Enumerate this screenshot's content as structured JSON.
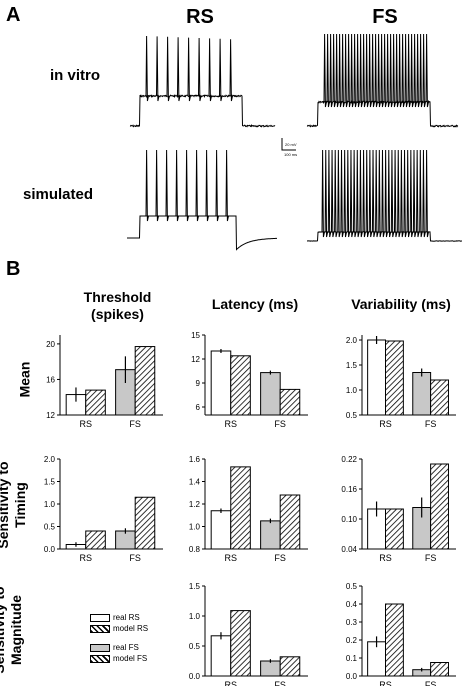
{
  "panel_a": {
    "label": "A",
    "col_rs": "RS",
    "col_fs": "FS",
    "row_invitro": "in vitro",
    "row_simulated": "simulated",
    "scale_v": "20 mV",
    "scale_t": "100 ms"
  },
  "panel_b": {
    "label": "B",
    "col_threshold": "Threshold (spikes)",
    "col_latency": "Latency (ms)",
    "col_variability": "Variability (ms)",
    "row_mean": "Mean",
    "row_timing": "Sensitivity to Timing",
    "row_magnitude": "Sensitivity to Magnitude"
  },
  "legend": {
    "items": [
      "real RS",
      "model RS",
      "real FS",
      "model FS"
    ]
  },
  "colors": {
    "real_rs": "#ffffff",
    "real_fs": "#c8c8c8",
    "hatch": "#000000"
  },
  "chart_data": [
    {
      "type": "bar",
      "id": "mean-threshold",
      "categories": [
        "RS",
        "FS"
      ],
      "ylim": [
        12,
        21
      ],
      "yticks": [
        12,
        16,
        20
      ],
      "real": [
        14.3,
        17.1
      ],
      "real_err": [
        0.8,
        1.5
      ],
      "model": [
        14.8,
        19.7
      ]
    },
    {
      "type": "bar",
      "id": "mean-latency",
      "categories": [
        "RS",
        "FS"
      ],
      "ylim": [
        5,
        15
      ],
      "yticks": [
        6,
        9,
        12,
        15
      ],
      "real": [
        13.0,
        10.3
      ],
      "real_err": [
        0.25,
        0.25
      ],
      "model": [
        12.4,
        8.2
      ]
    },
    {
      "type": "bar",
      "id": "mean-variability",
      "categories": [
        "RS",
        "FS"
      ],
      "ylim": [
        0.5,
        2.1
      ],
      "yticks": [
        0.5,
        1.0,
        1.5,
        2.0
      ],
      "real": [
        2.0,
        1.35
      ],
      "real_err": [
        0.08,
        0.08
      ],
      "model": [
        1.98,
        1.2
      ]
    },
    {
      "type": "bar",
      "id": "timing-threshold",
      "categories": [
        "RS",
        "FS"
      ],
      "ylim": [
        0,
        2
      ],
      "yticks": [
        0,
        0.5,
        1.0,
        1.5,
        2.0
      ],
      "real": [
        0.1,
        0.4
      ],
      "real_err": [
        0.05,
        0.06
      ],
      "model": [
        0.4,
        1.15
      ]
    },
    {
      "type": "bar",
      "id": "timing-latency",
      "categories": [
        "RS",
        "FS"
      ],
      "ylim": [
        0.8,
        1.6
      ],
      "yticks": [
        0.8,
        1.0,
        1.2,
        1.4,
        1.6
      ],
      "real": [
        1.14,
        1.05
      ],
      "real_err": [
        0.02,
        0.02
      ],
      "model": [
        1.53,
        1.28
      ]
    },
    {
      "type": "bar",
      "id": "timing-variability",
      "categories": [
        "RS",
        "FS"
      ],
      "ylim": [
        0.04,
        0.22
      ],
      "yticks": [
        0.04,
        0.1,
        0.16,
        0.22
      ],
      "real": [
        0.12,
        0.123
      ],
      "real_err": [
        0.015,
        0.02
      ],
      "model": [
        0.12,
        0.21
      ]
    },
    {
      "type": "bar",
      "id": "magnitude-latency",
      "categories": [
        "RS",
        "FS"
      ],
      "ylim": [
        0,
        1.5
      ],
      "yticks": [
        0.0,
        0.5,
        1.0,
        1.5
      ],
      "real": [
        0.67,
        0.25
      ],
      "real_err": [
        0.06,
        0.03
      ],
      "model": [
        1.09,
        0.32
      ]
    },
    {
      "type": "bar",
      "id": "magnitude-variability",
      "categories": [
        "RS",
        "FS"
      ],
      "ylim": [
        0,
        0.5
      ],
      "yticks": [
        0.0,
        0.1,
        0.2,
        0.3,
        0.4,
        0.5
      ],
      "real": [
        0.19,
        0.035
      ],
      "real_err": [
        0.03,
        0.01
      ],
      "model": [
        0.4,
        0.075
      ]
    }
  ]
}
